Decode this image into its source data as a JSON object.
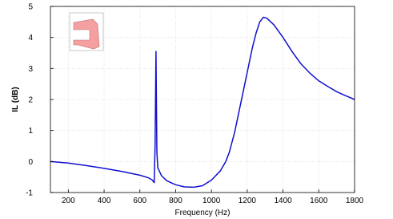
{
  "chart_data": {
    "type": "line",
    "x_label": "Frequency (Hz)",
    "y_label": "IL (dB)",
    "xlim": [
      100,
      1800
    ],
    "ylim": [
      -1,
      5
    ],
    "xticks": [
      200,
      400,
      600,
      800,
      1000,
      1200,
      1400,
      1600,
      1800
    ],
    "yticks": [
      -1,
      0,
      1,
      2,
      3,
      4,
      5
    ],
    "grid": true,
    "series": [
      {
        "color": "#1010d0",
        "x": [
          100,
          200,
          300,
          400,
          500,
          600,
          650,
          670,
          680,
          685,
          690,
          695,
          700,
          720,
          750,
          800,
          850,
          900,
          950,
          1000,
          1050,
          1080,
          1100,
          1130,
          1150,
          1170,
          1190,
          1210,
          1230,
          1250,
          1270,
          1290,
          1310,
          1350,
          1400,
          1450,
          1500,
          1550,
          1600,
          1650,
          1700,
          1750,
          1800
        ],
        "values": [
          0,
          -0.05,
          -0.13,
          -0.22,
          -0.32,
          -0.44,
          -0.53,
          -0.6,
          -0.68,
          0.5,
          3.55,
          0.3,
          -0.2,
          -0.45,
          -0.62,
          -0.75,
          -0.82,
          -0.83,
          -0.78,
          -0.6,
          -0.3,
          0.0,
          0.3,
          0.95,
          1.5,
          2.05,
          2.6,
          3.15,
          3.7,
          4.15,
          4.5,
          4.65,
          4.62,
          4.4,
          4.0,
          3.55,
          3.15,
          2.85,
          2.6,
          2.42,
          2.25,
          2.12,
          2.0
        ]
      }
    ]
  }
}
